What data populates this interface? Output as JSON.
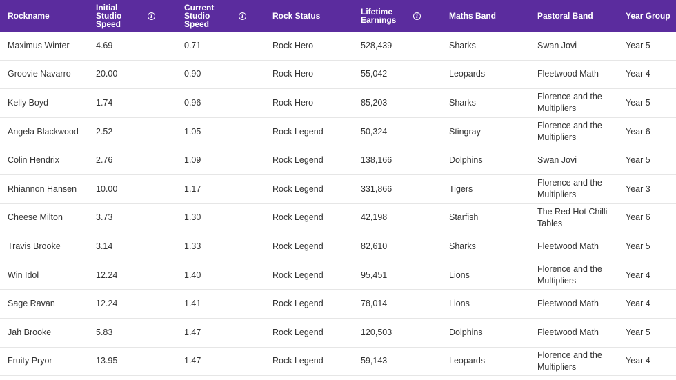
{
  "table": {
    "header_bg": "#5b2c9e",
    "columns": [
      {
        "label": "Rockname",
        "info": false
      },
      {
        "label": "Initial Studio Speed",
        "info": true
      },
      {
        "label": "Current Studio Speed",
        "info": true
      },
      {
        "label": "Rock Status",
        "info": false
      },
      {
        "label": "Lifetime Earnings",
        "info": true
      },
      {
        "label": "Maths Band",
        "info": false
      },
      {
        "label": "Pastoral Band",
        "info": false
      },
      {
        "label": "Year Group",
        "info": false
      }
    ],
    "rows": [
      [
        "Maximus Winter",
        "4.69",
        "0.71",
        "Rock Hero",
        "528,439",
        "Sharks",
        "Swan Jovi",
        "Year 5"
      ],
      [
        "Groovie Navarro",
        "20.00",
        "0.90",
        "Rock Hero",
        "55,042",
        "Leopards",
        "Fleetwood Math",
        "Year 4"
      ],
      [
        "Kelly Boyd",
        "1.74",
        "0.96",
        "Rock Hero",
        "85,203",
        "Sharks",
        "Florence and the Multipliers",
        "Year 5"
      ],
      [
        "Angela Blackwood",
        "2.52",
        "1.05",
        "Rock Legend",
        "50,324",
        "Stingray",
        "Florence and the Multipliers",
        "Year 6"
      ],
      [
        "Colin Hendrix",
        "2.76",
        "1.09",
        "Rock Legend",
        "138,166",
        "Dolphins",
        "Swan Jovi",
        "Year 5"
      ],
      [
        "Rhiannon Hansen",
        "10.00",
        "1.17",
        "Rock Legend",
        "331,866",
        "Tigers",
        "Florence and the Multipliers",
        "Year 3"
      ],
      [
        "Cheese Milton",
        "3.73",
        "1.30",
        "Rock Legend",
        "42,198",
        "Starfish",
        "The Red Hot Chilli Tables",
        "Year 6"
      ],
      [
        "Travis Brooke",
        "3.14",
        "1.33",
        "Rock Legend",
        "82,610",
        "Sharks",
        "Fleetwood Math",
        "Year 5"
      ],
      [
        "Win Idol",
        "12.24",
        "1.40",
        "Rock Legend",
        "95,451",
        "Lions",
        "Florence and the Multipliers",
        "Year 4"
      ],
      [
        "Sage Ravan",
        "12.24",
        "1.41",
        "Rock Legend",
        "78,014",
        "Lions",
        "Fleetwood Math",
        "Year 4"
      ],
      [
        "Jah Brooke",
        "5.83",
        "1.47",
        "Rock Legend",
        "120,503",
        "Dolphins",
        "Fleetwood Math",
        "Year 5"
      ],
      [
        "Fruity Pryor",
        "13.95",
        "1.47",
        "Rock Legend",
        "59,143",
        "Leopards",
        "Florence and the Multipliers",
        "Year 4"
      ]
    ]
  }
}
